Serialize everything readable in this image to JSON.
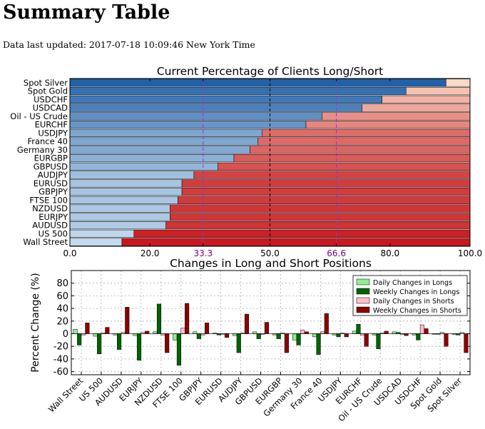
{
  "page": {
    "title": "Summary Table",
    "updated": "Data last updated: 2017-07-18 10:09:46 New York Time"
  },
  "colors": {
    "long_dark": "#1f5fa8",
    "long_light": "#c7dcef",
    "short_light": "#fcdcc9",
    "short_dark": "#c8161d",
    "daily_longs": "#90ee90",
    "weekly_longs": "#006400",
    "daily_shorts": "#ffc0cb",
    "weekly_shorts": "#8b0000",
    "ref_line_purple": "#9932cc",
    "tick_purple": "#800080"
  },
  "chart_data": [
    {
      "type": "bar",
      "orientation": "horizontal",
      "stacked": true,
      "title": "Current Percentage of Clients Long/Short",
      "categories": [
        "Spot Silver",
        "Spot Gold",
        "USDCHF",
        "USDCAD",
        "Oil - US Crude",
        "EURCHF",
        "USDJPY",
        "France 40",
        "Germany 30",
        "EURGBP",
        "GBPUSD",
        "AUDJPY",
        "EURUSD",
        "GBPJPY",
        "FTSE 100",
        "NZDUSD",
        "EURJPY",
        "AUDUSD",
        "US 500",
        "Wall Street"
      ],
      "series": [
        {
          "name": "Long",
          "values": [
            94,
            84,
            78,
            73,
            63,
            59,
            48,
            47,
            45,
            41,
            37,
            31,
            28,
            28,
            27,
            25,
            25,
            24,
            16,
            13
          ]
        },
        {
          "name": "Short",
          "values": [
            6,
            16,
            22,
            27,
            37,
            41,
            52,
            53,
            55,
            59,
            63,
            69,
            72,
            72,
            73,
            75,
            75,
            76,
            84,
            87
          ]
        }
      ],
      "xlim": [
        0,
        100
      ],
      "xticks": [
        "0.0",
        "20.0",
        "33.3",
        "50.0",
        "66.6",
        "80.0",
        "100.0"
      ],
      "reference_lines": [
        33.3,
        50.0,
        66.6
      ],
      "grid": false
    },
    {
      "type": "bar",
      "title": "Changes in Long and Short Positions",
      "ylabel": "Percent Change (%)",
      "ylim": [
        -65,
        100
      ],
      "yticks": [
        -60,
        -40,
        -20,
        0,
        20,
        40,
        60,
        80
      ],
      "grid": true,
      "legend_position": "top-right",
      "categories": [
        "Wall Street",
        "US 500",
        "AUDUSD",
        "EURJPY",
        "NZDUSD",
        "FTSE 100",
        "GBPJPY",
        "EURUSD",
        "AUDJPY",
        "GBPUSD",
        "EURGBP",
        "Germany 30",
        "France 40",
        "USDJPY",
        "EURCHF",
        "Oil - US Crude",
        "USDCAD",
        "USDCHF",
        "Spot Gold",
        "Spot Silver"
      ],
      "series": [
        {
          "name": "Daily Changes in Longs",
          "values": [
            7,
            -4,
            -2,
            -3,
            3,
            -10,
            3,
            1,
            -3,
            3,
            -2,
            -10,
            -5,
            -2,
            4,
            -2,
            3,
            -2,
            -1,
            -1
          ]
        },
        {
          "name": "Weekly Changes in Longs",
          "values": [
            -18,
            -32,
            -25,
            -42,
            47,
            -50,
            -8,
            -2,
            -30,
            -8,
            -8,
            -18,
            -33,
            -5,
            15,
            -24,
            2,
            -10,
            -1,
            -2
          ]
        },
        {
          "name": "Daily Changes in Shorts",
          "values": [
            -2,
            1,
            2,
            2,
            -2,
            9,
            -2,
            -1,
            1,
            -1,
            1,
            6,
            3,
            1,
            -2,
            1,
            -1,
            14,
            2,
            2
          ]
        },
        {
          "name": "Weekly Changes in Shorts",
          "values": [
            17,
            10,
            42,
            4,
            -30,
            48,
            17,
            -6,
            31,
            18,
            -30,
            3,
            32,
            -5,
            -20,
            4,
            -3,
            8,
            -20,
            -30
          ]
        }
      ]
    }
  ]
}
